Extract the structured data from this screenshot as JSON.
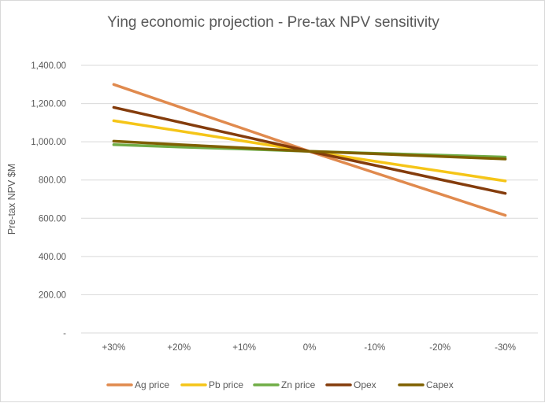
{
  "chart_data": {
    "type": "line",
    "title": "Ying economic projection - Pre-tax NPV sensitivity",
    "xlabel": "",
    "ylabel": "Pre-tax NPV $M",
    "categories": [
      "+30%",
      "+20%",
      "+10%",
      "0%",
      "-10%",
      "-20%",
      "-30%"
    ],
    "y_ticks": [
      {
        "value": 0,
        "label": "-"
      },
      {
        "value": 200,
        "label": "200.00"
      },
      {
        "value": 400,
        "label": "400.00"
      },
      {
        "value": 600,
        "label": "600.00"
      },
      {
        "value": 800,
        "label": "800.00"
      },
      {
        "value": 1000,
        "label": "1,000.00"
      },
      {
        "value": 1200,
        "label": "1,200.00"
      },
      {
        "value": 1400,
        "label": "1,400.00"
      }
    ],
    "ylim": [
      0,
      1400
    ],
    "grid": true,
    "legend_position": "bottom",
    "series": [
      {
        "name": "Ag price",
        "color": "#e08a4e",
        "values": [
          1300,
          1183,
          1067,
          950,
          838,
          727,
          615
        ]
      },
      {
        "name": "Pb price",
        "color": "#f5c518",
        "values": [
          1110,
          1057,
          1003,
          950,
          898,
          847,
          795
        ]
      },
      {
        "name": "Zn price",
        "color": "#70ad47",
        "values": [
          985,
          973,
          962,
          950,
          940,
          930,
          920
        ]
      },
      {
        "name": "Opex",
        "color": "#843c0c",
        "values": [
          1180,
          1103,
          1027,
          950,
          877,
          803,
          730
        ]
      },
      {
        "name": "Capex",
        "color": "#7f6000",
        "values": [
          1003,
          985,
          968,
          950,
          937,
          923,
          910
        ]
      }
    ]
  }
}
